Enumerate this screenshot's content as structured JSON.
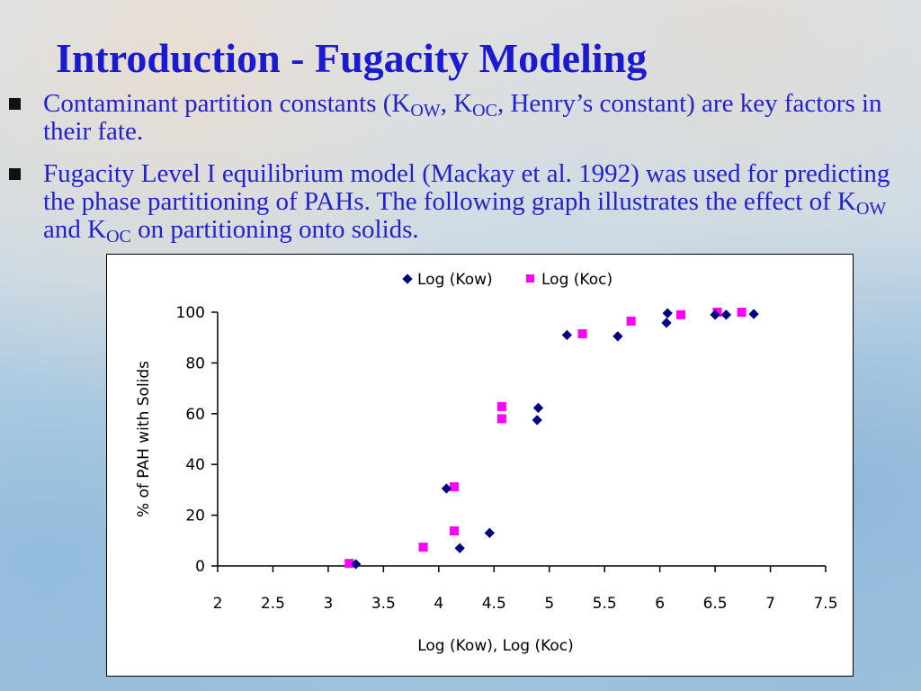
{
  "slide": {
    "title": "Introduction - Fugacity Modeling",
    "bullets": [
      {
        "parts": [
          "Contaminant partition constants (K",
          "OW",
          ", K",
          "OC",
          ", Henry’s constant) are key factors in their fate."
        ]
      },
      {
        "parts": [
          "Fugacity Level I equilibrium model (Mackay et al. 1992) was used for predicting the phase partitioning of PAHs. The following graph illustrates the effect of K",
          "OW",
          " and K",
          "OC",
          " on partitioning onto solids."
        ]
      }
    ]
  },
  "colors": {
    "kow": "#000080",
    "koc": "#ff00ff",
    "title": "#1a1ad0"
  },
  "chart_data": {
    "type": "scatter",
    "title": "",
    "xlabel": "Log (Kow), Log (Koc)",
    "ylabel": "% of PAH with Solids",
    "xlim": [
      2,
      7.5
    ],
    "ylim": [
      0,
      100
    ],
    "xticks": [
      "2",
      "2.5",
      "3",
      "3.5",
      "4",
      "4.5",
      "5",
      "5.5",
      "6",
      "6.5",
      "7",
      "7.5"
    ],
    "yticks": [
      "0",
      "20",
      "40",
      "60",
      "80",
      "100"
    ],
    "legend_position": "top",
    "series": [
      {
        "name": "Log (Kow)",
        "marker": "diamond",
        "points": [
          [
            3.25,
            0.7
          ],
          [
            4.07,
            30.5
          ],
          [
            4.19,
            7
          ],
          [
            4.46,
            13
          ],
          [
            4.89,
            57.5
          ],
          [
            4.9,
            62.3
          ],
          [
            5.16,
            91
          ],
          [
            5.62,
            90.5
          ],
          [
            6.06,
            95.8
          ],
          [
            6.07,
            99.6
          ],
          [
            6.5,
            99
          ],
          [
            6.6,
            99
          ],
          [
            6.85,
            99.3
          ]
        ]
      },
      {
        "name": "Log (Koc)",
        "marker": "square",
        "points": [
          [
            3.19,
            1
          ],
          [
            3.86,
            7.4
          ],
          [
            4.14,
            13.8
          ],
          [
            4.14,
            31.2
          ],
          [
            4.57,
            58
          ],
          [
            4.57,
            62.8
          ],
          [
            5.3,
            91.5
          ],
          [
            5.74,
            96.5
          ],
          [
            6.19,
            99
          ],
          [
            6.52,
            100
          ],
          [
            6.74,
            100
          ]
        ]
      }
    ]
  }
}
